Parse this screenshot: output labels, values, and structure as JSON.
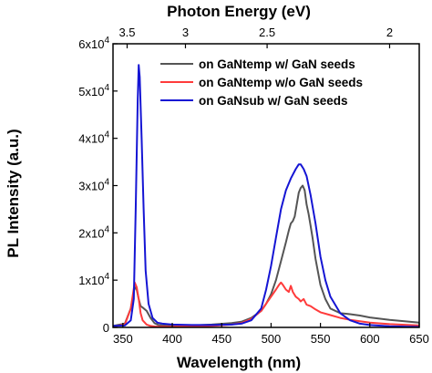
{
  "chart_data": {
    "type": "line",
    "top_xlabel": "Photon Energy (eV)",
    "xlabel": "Wavelength (nm)",
    "ylabel": "PL Intensity (a.u.)",
    "xlim": [
      340,
      650
    ],
    "ylim": [
      0,
      60000
    ],
    "x_ticks": [
      350,
      400,
      450,
      500,
      550,
      600,
      650
    ],
    "x_tick_labels": [
      "350",
      "400",
      "450",
      "500",
      "550",
      "600",
      "650"
    ],
    "y_ticks": [
      {
        "value": 0,
        "mant": "0",
        "exp": ""
      },
      {
        "value": 10000,
        "mant": "1x10",
        "exp": "4"
      },
      {
        "value": 20000,
        "mant": "2x10",
        "exp": "4"
      },
      {
        "value": 30000,
        "mant": "3x10",
        "exp": "4"
      },
      {
        "value": 40000,
        "mant": "4x10",
        "exp": "4"
      },
      {
        "value": 50000,
        "mant": "5x10",
        "exp": "4"
      },
      {
        "value": 60000,
        "mant": "6x10",
        "exp": "4"
      }
    ],
    "top_ticks": [
      {
        "energy": 3.5,
        "label": "3.5"
      },
      {
        "energy": 3.0,
        "label": "3"
      },
      {
        "energy": 2.5,
        "label": "2.5"
      },
      {
        "energy": 2.0,
        "label": "2"
      }
    ],
    "legend_position": "top-right",
    "series": [
      {
        "name": "on GaNtemp w/ GaN seeds",
        "color": "#555555",
        "x": [
          340,
          352,
          358,
          362,
          364,
          366,
          368,
          370,
          374,
          378,
          382,
          386,
          390,
          400,
          420,
          440,
          460,
          470,
          480,
          490,
          495,
          500,
          505,
          510,
          515,
          518,
          520,
          522,
          524,
          526,
          528,
          530,
          532,
          534,
          536,
          538,
          540,
          542,
          545,
          550,
          555,
          560,
          570,
          580,
          590,
          600,
          620,
          640,
          650
        ],
        "y": [
          300,
          800,
          4000,
          8500,
          8000,
          6000,
          4500,
          4200,
          3500,
          2000,
          900,
          500,
          400,
          300,
          400,
          600,
          900,
          1200,
          2000,
          3500,
          5000,
          7000,
          10000,
          14000,
          18000,
          20500,
          22000,
          22500,
          23500,
          26000,
          28500,
          29500,
          30000,
          29000,
          26000,
          24000,
          21500,
          19000,
          14500,
          9000,
          6000,
          4000,
          3000,
          2800,
          2500,
          2100,
          1600,
          1200,
          1000
        ]
      },
      {
        "name": "on GaNtemp w/o GaN seeds",
        "color": "#ff3b3b",
        "x": [
          340,
          352,
          358,
          362,
          364,
          366,
          368,
          370,
          374,
          378,
          382,
          386,
          390,
          400,
          420,
          440,
          460,
          470,
          480,
          490,
          495,
          500,
          505,
          508,
          510,
          512,
          515,
          518,
          520,
          522,
          525,
          528,
          530,
          533,
          536,
          540,
          545,
          550,
          560,
          570,
          580,
          590,
          600,
          620,
          640,
          650
        ],
        "y": [
          200,
          600,
          4000,
          9500,
          8500,
          6000,
          3000,
          1500,
          600,
          300,
          200,
          150,
          150,
          150,
          200,
          300,
          600,
          900,
          1800,
          3500,
          5000,
          6500,
          8000,
          9000,
          9500,
          9000,
          8000,
          7500,
          8800,
          7500,
          6500,
          6000,
          5500,
          6000,
          4800,
          4500,
          3800,
          3200,
          2600,
          2000,
          1600,
          1300,
          1000,
          700,
          500,
          400
        ]
      },
      {
        "name": "on GaNsub w/ GaN seeds",
        "color": "#1515d4",
        "x": [
          340,
          352,
          358,
          361,
          363,
          365,
          366,
          367,
          369,
          371,
          373,
          376,
          380,
          385,
          390,
          400,
          420,
          440,
          460,
          470,
          480,
          490,
          495,
          500,
          505,
          510,
          515,
          520,
          525,
          528,
          530,
          533,
          536,
          540,
          545,
          550,
          555,
          560,
          570,
          580,
          590,
          600,
          620,
          640,
          650
        ],
        "y": [
          300,
          400,
          1500,
          6000,
          25000,
          48000,
          55500,
          53000,
          40000,
          25000,
          12000,
          5000,
          2000,
          1000,
          800,
          600,
          500,
          500,
          600,
          800,
          1500,
          4000,
          8000,
          13000,
          19000,
          25000,
          29000,
          31500,
          33500,
          34500,
          34500,
          33500,
          32000,
          28000,
          22000,
          15000,
          10000,
          6500,
          3000,
          1500,
          800,
          500,
          250,
          150,
          100
        ]
      }
    ]
  }
}
